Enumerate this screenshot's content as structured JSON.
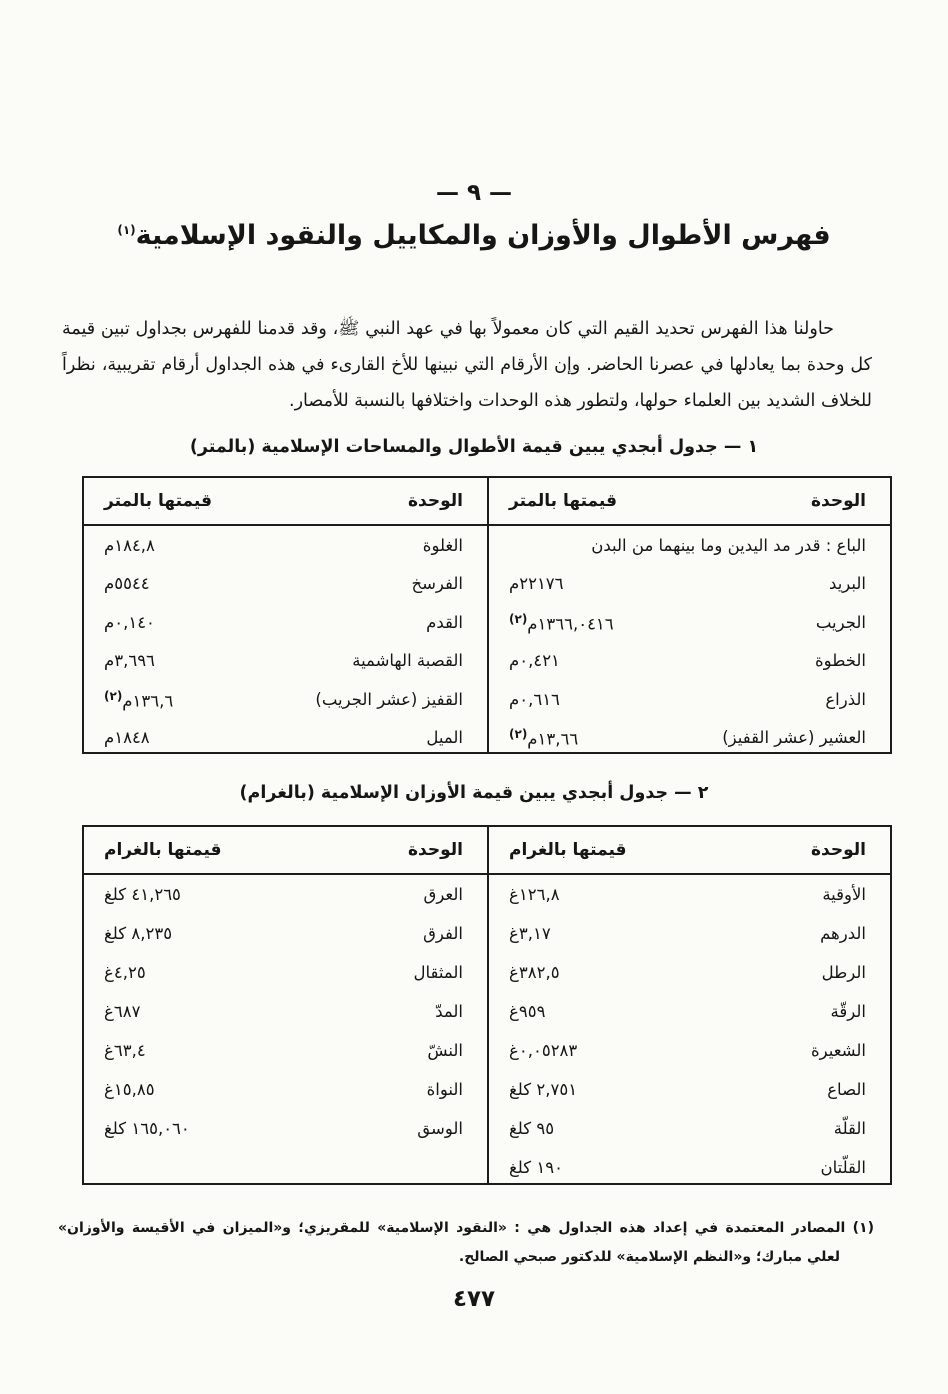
{
  "colors": {
    "ink": "#161616",
    "paper": "#fbfbf8"
  },
  "page": {
    "section_number": "— ٩ —",
    "title": "فهرس الأطوال والأوزان والمكاييل والنقود الإسلامية",
    "title_ref": "(١)",
    "intro": "حاولنا هذا الفهرس تحديد القيم التي كان معمولاً بها في عهد النبي ﷺ، وقد قدمنا للفهرس بجداول تبين قيمة كل وحدة بما يعادلها في عصرنا الحاضر. وإن الأرقام التي نبينها للأخ القارىء في هذه الجداول أرقام تقريبية، نظراً للخلاف الشديد بين العلماء حولها، ولتطور هذه الوحدات واختلافها بالنسبة للأمصار.",
    "footnote": "(١) المصادر المعتمدة في إعداد هذه الجداول هي : «النقود الإسلامية» للمقريزي؛ و«الميزان في الأقيسة والأوزان» لعلي مبارك؛ و«النظم الإسلامية» للدكتور صبحي الصالح.",
    "page_number": "٤٧٧"
  },
  "table1": {
    "caption": "١ — جدول أبجدي يبين قيمة الأطوال والمساحات الإسلامية (بالمتر)",
    "col_unit": "الوحدة",
    "col_value": "قيمتها بالمتر",
    "right_rows": [
      {
        "unit": "الباع : قدر مد اليدين وما بينهما من البدن",
        "value": ""
      },
      {
        "unit": "البريد",
        "value": "٢٢١٧٦م"
      },
      {
        "unit": "الجريب",
        "value": "١٣٦٦,٠٤١٦م",
        "ref": "(٢)"
      },
      {
        "unit": "الخطوة",
        "value": "٠,٤٢١م"
      },
      {
        "unit": "الذراع",
        "value": "٠,٦١٦م"
      },
      {
        "unit": "العشير (عشر القفيز)",
        "value": "١٣,٦٦م",
        "ref": "(٢)"
      }
    ],
    "left_rows": [
      {
        "unit": "الغلوة",
        "value": "١٨٤,٨م"
      },
      {
        "unit": "الفرسخ",
        "value": "٥٥٤٤م"
      },
      {
        "unit": "القدم",
        "value": "٠,١٤٠م"
      },
      {
        "unit": "القصبة الهاشمية",
        "value": "٣,٦٩٦م"
      },
      {
        "unit": "القفيز (عشر الجريب)",
        "value": "١٣٦,٦م",
        "ref": "(٢)"
      },
      {
        "unit": "الميل",
        "value": "١٨٤٨م"
      }
    ]
  },
  "table2": {
    "caption": "٢ — جدول أبجدي يبين قيمة الأوزان الإسلامية (بالغرام)",
    "col_unit": "الوحدة",
    "col_value": "قيمتها بالغرام",
    "right_rows": [
      {
        "unit": "الأوقية",
        "value": "١٢٦,٨غ"
      },
      {
        "unit": "الدرهم",
        "value": "٣,١٧غ"
      },
      {
        "unit": "الرطل",
        "value": "٣٨٢,٥غ"
      },
      {
        "unit": "الرقّة",
        "value": "٩٥٩غ"
      },
      {
        "unit": "الشعيرة",
        "value": "٠,٠٥٢٨٣غ"
      },
      {
        "unit": "الصاع",
        "value": "٢,٧٥١ كلغ"
      },
      {
        "unit": "القلّة",
        "value": "٩٥ كلغ"
      },
      {
        "unit": "القلّتان",
        "value": "١٩٠ كلغ"
      }
    ],
    "left_rows": [
      {
        "unit": "العرق",
        "value": "٤١,٢٦٥ كلغ"
      },
      {
        "unit": "الفرق",
        "value": "٨,٢٣٥ كلغ"
      },
      {
        "unit": "المثقال",
        "value": "٤,٢٥غ"
      },
      {
        "unit": "المدّ",
        "value": "٦٨٧غ"
      },
      {
        "unit": "النشّ",
        "value": "٦٣,٤غ"
      },
      {
        "unit": "النواة",
        "value": "١٥,٨٥غ"
      },
      {
        "unit": "الوسق",
        "value": "١٦٥,٠٦٠ كلغ"
      }
    ]
  }
}
